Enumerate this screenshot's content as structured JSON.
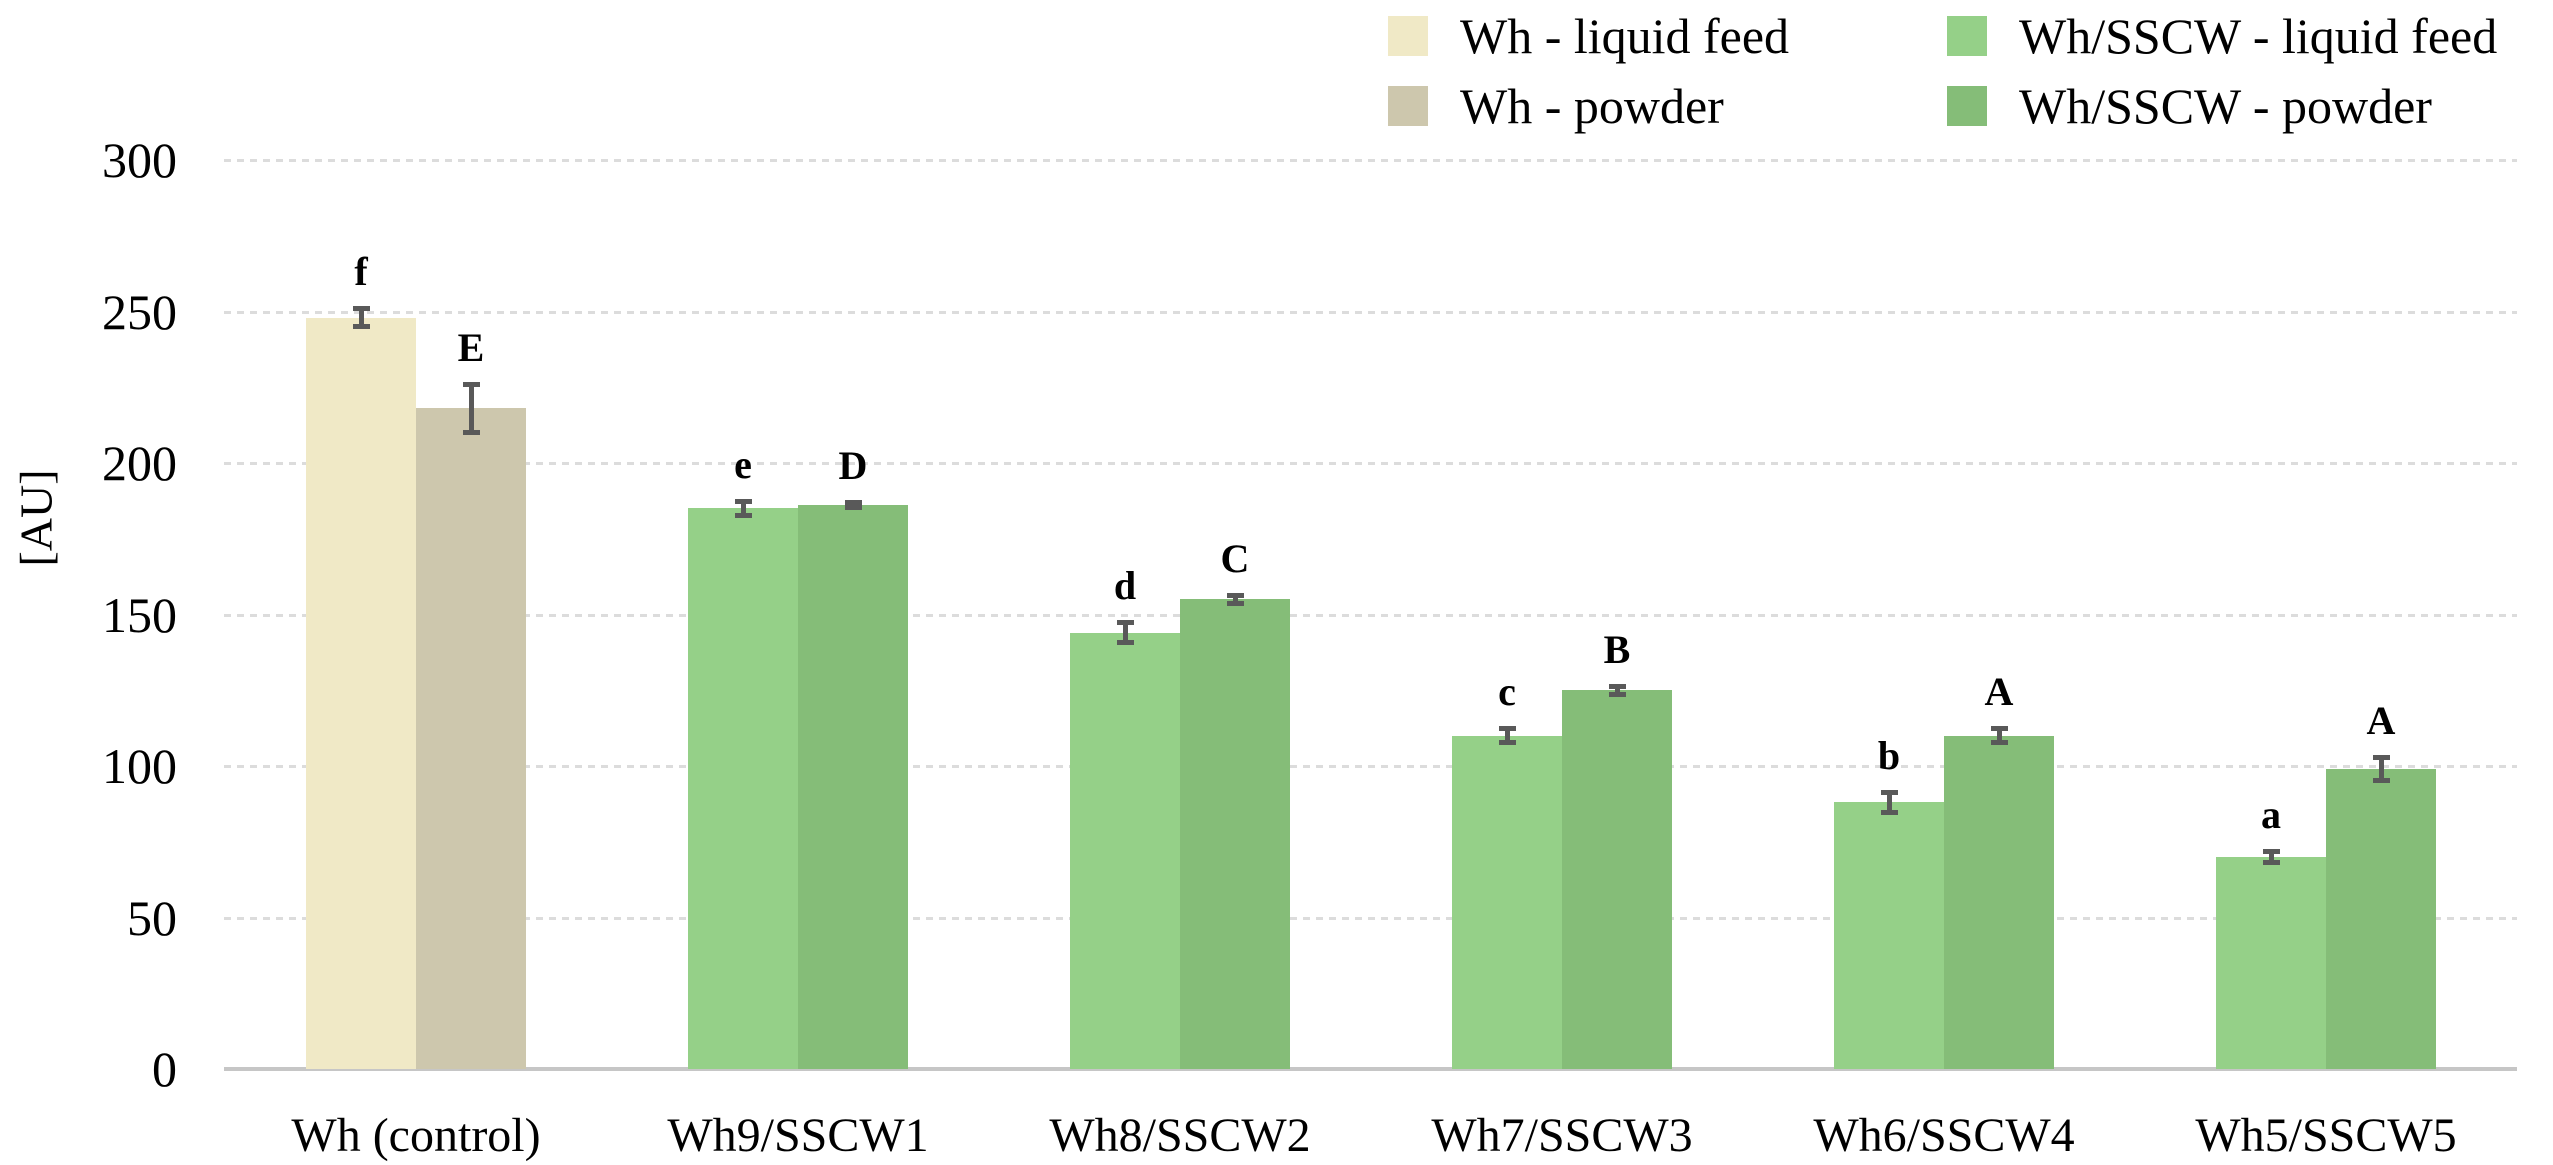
{
  "chart_data": {
    "type": "bar",
    "title": "",
    "ylabel": "[AU]",
    "xlabel": "",
    "ylim": [
      0,
      300
    ],
    "yticks": [
      0,
      50,
      100,
      150,
      200,
      250,
      300
    ],
    "grid": "horizontal-dashed",
    "legend_position": "top-right-two-columns",
    "categories": [
      "Wh (control)",
      "Wh9/SSCW1",
      "Wh8/SSCW2",
      "Wh7/SSCW3",
      "Wh6/SSCW4",
      "Wh5/SSCW5"
    ],
    "series": [
      {
        "name": "Wh - liquid feed",
        "color": "#f0e9c6",
        "values": [
          248,
          null,
          null,
          null,
          null,
          null
        ],
        "errors": [
          3,
          null,
          null,
          null,
          null,
          null
        ],
        "sig_letters": [
          "f",
          null,
          null,
          null,
          null,
          null
        ]
      },
      {
        "name": "Wh - powder",
        "color": "#cdc7ad",
        "values": [
          218,
          null,
          null,
          null,
          null,
          null
        ],
        "errors": [
          8,
          null,
          null,
          null,
          null,
          null
        ],
        "sig_letters": [
          "E",
          null,
          null,
          null,
          null,
          null
        ]
      },
      {
        "name": "Wh/SSCW - liquid feed",
        "color": "#95d088",
        "values": [
          null,
          185,
          144,
          110,
          88,
          70
        ],
        "errors": [
          null,
          2.5,
          3.5,
          2.5,
          3.5,
          2
        ],
        "sig_letters": [
          null,
          "e",
          "d",
          "c",
          "b",
          "a"
        ]
      },
      {
        "name": "Wh/SSCW - powder",
        "color": "#85bd78",
        "values": [
          null,
          186,
          155,
          125,
          110,
          99
        ],
        "errors": [
          null,
          1,
          1.5,
          1.5,
          2.5,
          4
        ],
        "sig_letters": [
          null,
          "D",
          "C",
          "B",
          "A",
          "A"
        ]
      }
    ],
    "colors": {
      "gridline": "#dcdcdc",
      "axis_line": "#c6c6c6",
      "error_bar": "#595959",
      "text": "#000000"
    }
  }
}
